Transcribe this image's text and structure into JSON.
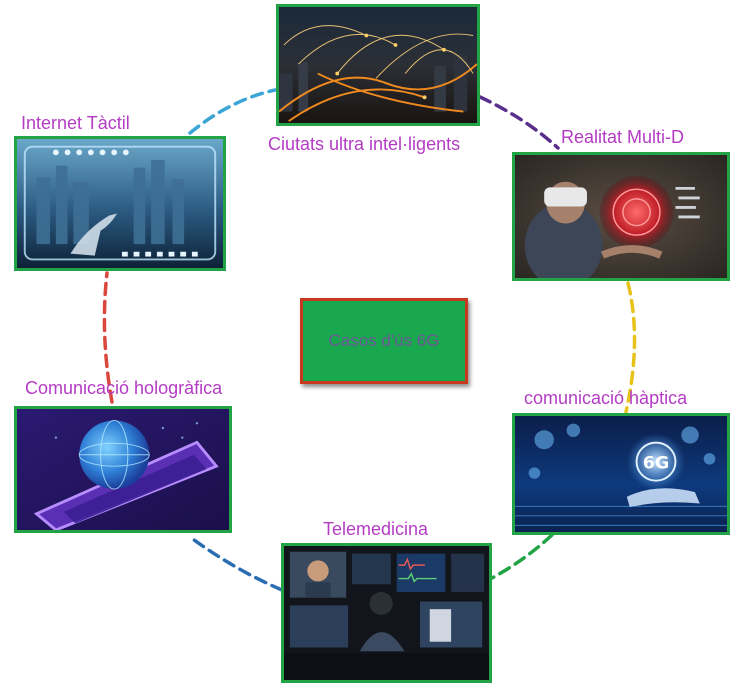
{
  "center": {
    "label": "Casos d'ús 6G"
  },
  "nodes": [
    {
      "id": "ciutats",
      "label": "Ciutats ultra intel·ligents",
      "image": "city-network-night-image"
    },
    {
      "id": "realitat",
      "label": "Realitat Multi-D",
      "image": "vr-headset-hologram-image"
    },
    {
      "id": "haptica",
      "label": "comunicació hàptica",
      "image": "6g-hand-hologram-image"
    },
    {
      "id": "telemedicina",
      "label": "Telemedicina",
      "image": "remote-doctor-monitors-image"
    },
    {
      "id": "holografica",
      "label": "Comunicació hologràfica",
      "image": "globe-hologram-tablet-image"
    },
    {
      "id": "tactil",
      "label": "Internet Tàctil",
      "image": "touch-screen-city-image"
    }
  ],
  "colors": {
    "card_border": "#22a446",
    "label": "#b43cc4",
    "center_fill": "#1aa84e",
    "center_border": "#c7381f",
    "arc_tactil_ciutats": "#3ba6d6",
    "arc_ciutats_realitat": "#5a2f8c",
    "arc_realitat_haptica": "#e6c21a",
    "arc_haptica_telemedicina": "#22a446",
    "arc_telemedicina_holografica": "#2a6db0",
    "arc_holografica_tactil": "#d9473d"
  }
}
